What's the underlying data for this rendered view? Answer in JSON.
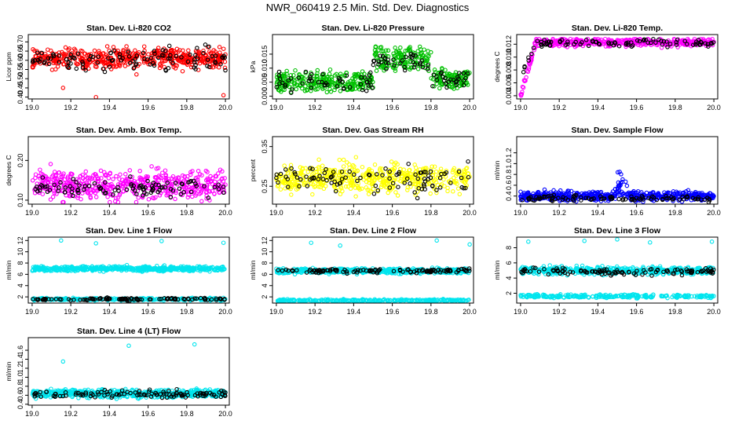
{
  "title": "NWR_060419  2.5 Min. Std. Dev. Diagnostics",
  "chart_data": [
    {
      "type": "scatter",
      "title": "Stan. Dev. Li-820 CO2",
      "ylabel": "Licor ppm",
      "xlim": [
        18.98,
        20.02
      ],
      "ylim": [
        0.39,
        0.74
      ],
      "xticks": [
        "19.0",
        "19.2",
        "19.4",
        "19.6",
        "19.8",
        "20.0"
      ],
      "yticks": [
        "0.40",
        "0.45",
        "0.50",
        "0.55",
        "0.60",
        "0.65",
        "0.70"
      ],
      "series": [
        {
          "color": "#ff0000",
          "n": 520,
          "distribution": {
            "center": 0.61,
            "spread": 0.04,
            "min": 0.44,
            "max": 0.73
          }
        },
        {
          "color": "#000000",
          "n": 110,
          "distribution": {
            "center": 0.61,
            "spread": 0.04,
            "min": 0.48,
            "max": 0.72
          }
        }
      ],
      "outliers": [
        {
          "x": 19.33,
          "y": 0.4,
          "color": "#ff0000"
        },
        {
          "x": 19.99,
          "y": 0.41,
          "color": "#ff0000"
        },
        {
          "x": 19.16,
          "y": 0.45,
          "color": "#ff0000"
        }
      ]
    },
    {
      "type": "scatter",
      "title": "Stan. Dev. Li-820 Pressure",
      "ylabel": "kPa",
      "xlim": [
        18.98,
        20.02
      ],
      "ylim": [
        -0.001,
        0.022
      ],
      "xticks": [
        "19.0",
        "19.2",
        "19.4",
        "19.6",
        "19.8",
        "20.0"
      ],
      "yticks": [
        "0.000",
        "0.005",
        "0.010",
        "0.015"
      ],
      "series": [
        {
          "color": "#00c000",
          "n": 520,
          "segments": [
            [
              18.98,
              19.5,
              0.004,
              0.006
            ],
            [
              19.5,
              19.8,
              0.012,
              0.007
            ],
            [
              19.8,
              20.02,
              0.005,
              0.006
            ]
          ],
          "spread": 0.002,
          "min": 0.0,
          "max": 0.021
        },
        {
          "color": "#000000",
          "n": 110,
          "segments": [
            [
              18.98,
              19.5,
              0.004,
              0.006
            ],
            [
              19.5,
              19.8,
              0.011,
              0.006
            ],
            [
              19.8,
              20.02,
              0.005,
              0.005
            ]
          ],
          "spread": 0.002,
          "min": 0.0,
          "max": 0.018
        }
      ]
    },
    {
      "type": "scatter",
      "title": "Stan. Dev. Li-820 Temp.",
      "ylabel": "degrees C",
      "xlim": [
        18.98,
        20.02
      ],
      "ylim": [
        0.0035,
        0.0135
      ],
      "xticks": [
        "19.0",
        "19.2",
        "19.4",
        "19.6",
        "19.8",
        "20.0"
      ],
      "yticks": [
        "0.004",
        "0.006",
        "0.008",
        "0.010",
        "0.012"
      ],
      "series": [
        {
          "color": "#ff00ff",
          "n": 480,
          "distribution": {
            "center": 0.0123,
            "spread": 0.0004,
            "min": 0.004,
            "max": 0.0128
          },
          "rampStart": 19.0,
          "rampEnd": 19.08,
          "rampFrom": 0.004
        },
        {
          "color": "#000000",
          "n": 90,
          "distribution": {
            "center": 0.0122,
            "spread": 0.0004,
            "min": 0.006,
            "max": 0.0128
          },
          "rampStart": 19.0,
          "rampEnd": 19.08,
          "rampFrom": 0.007
        }
      ]
    },
    {
      "type": "scatter",
      "title": "Stan. Dev. Amb. Box Temp.",
      "ylabel": "degrees C",
      "xlim": [
        18.98,
        20.02
      ],
      "ylim": [
        0.09,
        0.26
      ],
      "xticks": [
        "19.0",
        "19.2",
        "19.4",
        "19.6",
        "19.8",
        "20.0"
      ],
      "yticks": [
        "0.10",
        "0.20"
      ],
      "series": [
        {
          "color": "#ff00ff",
          "n": 520,
          "distribution": {
            "center": 0.14,
            "spread": 0.025,
            "min": 0.095,
            "max": 0.25
          }
        },
        {
          "color": "#000000",
          "n": 100,
          "distribution": {
            "center": 0.13,
            "spread": 0.015,
            "min": 0.1,
            "max": 0.18
          }
        }
      ]
    },
    {
      "type": "scatter",
      "title": "Stan. Dev. Gas Stream RH",
      "ylabel": "percent",
      "xlim": [
        18.98,
        20.02
      ],
      "ylim": [
        0.205,
        0.375
      ],
      "xticks": [
        "19.0",
        "19.2",
        "19.4",
        "19.6",
        "19.8",
        "20.0"
      ],
      "yticks": [
        "0.25",
        "0.35"
      ],
      "series": [
        {
          "color": "#ffff00",
          "n": 520,
          "distribution": {
            "center": 0.27,
            "spread": 0.025,
            "min": 0.21,
            "max": 0.37
          }
        },
        {
          "color": "#000000",
          "n": 100,
          "distribution": {
            "center": 0.27,
            "spread": 0.025,
            "min": 0.22,
            "max": 0.33
          }
        }
      ]
    },
    {
      "type": "scatter",
      "title": "Stan. Dev. Sample Flow",
      "ylabel": "ml/min",
      "xlim": [
        18.98,
        20.02
      ],
      "ylim": [
        0.25,
        1.5
      ],
      "xticks": [
        "19.0",
        "19.2",
        "19.4",
        "19.6",
        "19.8",
        "20.0"
      ],
      "yticks": [
        "0.4",
        "0.6",
        "0.8",
        "1.0",
        "1.2"
      ],
      "series": [
        {
          "color": "#0000ff",
          "n": 560,
          "distribution": {
            "center": 0.4,
            "spread": 0.06,
            "min": 0.28,
            "max": 0.7
          },
          "peak": {
            "x": 19.52,
            "width": 0.04,
            "height": 0.55
          }
        },
        {
          "color": "#000000",
          "n": 100,
          "distribution": {
            "center": 0.36,
            "spread": 0.04,
            "min": 0.28,
            "max": 0.5
          }
        }
      ]
    },
    {
      "type": "scatter",
      "title": "Stan. Dev. Line 1 Flow",
      "ylabel": "ml/min",
      "xlim": [
        18.98,
        20.02
      ],
      "ylim": [
        0.9,
        12.6
      ],
      "xticks": [
        "19.0",
        "19.2",
        "19.4",
        "19.6",
        "19.8",
        "20.0"
      ],
      "yticks": [
        "2",
        "4",
        "6",
        "8",
        "10",
        "12"
      ],
      "series": [
        {
          "color": "#00e5ee",
          "n": 520,
          "distribution": {
            "center": 7.0,
            "spread": 0.3,
            "min": 5.2,
            "max": 8.0
          }
        },
        {
          "color": "#00e5ee",
          "n": 260,
          "distribution": {
            "center": 1.6,
            "spread": 0.15,
            "min": 1.2,
            "max": 2.1
          }
        },
        {
          "color": "#000000",
          "n": 110,
          "distribution": {
            "center": 1.6,
            "spread": 0.15,
            "min": 1.2,
            "max": 2.0
          }
        }
      ],
      "outliers": [
        {
          "x": 19.15,
          "y": 12.0,
          "color": "#00e5ee"
        },
        {
          "x": 19.33,
          "y": 11.5,
          "color": "#00e5ee"
        },
        {
          "x": 19.67,
          "y": 11.9,
          "color": "#00e5ee"
        },
        {
          "x": 19.99,
          "y": 11.6,
          "color": "#00e5ee"
        }
      ]
    },
    {
      "type": "scatter",
      "title": "Stan. Dev. Line 2 Flow",
      "ylabel": "ml/min",
      "xlim": [
        18.98,
        20.02
      ],
      "ylim": [
        0.9,
        12.6
      ],
      "xticks": [
        "19.0",
        "19.2",
        "19.4",
        "19.6",
        "19.8",
        "20.0"
      ],
      "yticks": [
        "2",
        "4",
        "6",
        "8",
        "10",
        "12"
      ],
      "series": [
        {
          "color": "#00e5ee",
          "n": 520,
          "distribution": {
            "center": 6.6,
            "spread": 0.3,
            "min": 5.2,
            "max": 7.6
          }
        },
        {
          "color": "#00e5ee",
          "n": 260,
          "distribution": {
            "center": 1.4,
            "spread": 0.12,
            "min": 1.0,
            "max": 1.9
          }
        },
        {
          "color": "#000000",
          "n": 110,
          "distribution": {
            "center": 6.6,
            "spread": 0.3,
            "min": 5.6,
            "max": 7.3
          }
        }
      ],
      "outliers": [
        {
          "x": 19.18,
          "y": 11.6,
          "color": "#00e5ee"
        },
        {
          "x": 19.33,
          "y": 11.1,
          "color": "#00e5ee"
        },
        {
          "x": 19.83,
          "y": 12.0,
          "color": "#00e5ee"
        },
        {
          "x": 20.0,
          "y": 11.3,
          "color": "#00e5ee"
        }
      ]
    },
    {
      "type": "scatter",
      "title": "Stan. Dev. Line 3 Flow",
      "ylabel": "ml/min",
      "xlim": [
        18.98,
        20.02
      ],
      "ylim": [
        0.7,
        9.4
      ],
      "xticks": [
        "19.0",
        "19.2",
        "19.4",
        "19.6",
        "19.8",
        "20.0"
      ],
      "yticks": [
        "2",
        "4",
        "6",
        "8"
      ],
      "series": [
        {
          "color": "#00e5ee",
          "n": 520,
          "distribution": {
            "center": 5.0,
            "spread": 0.35,
            "min": 3.8,
            "max": 6.2
          }
        },
        {
          "color": "#00e5ee",
          "n": 260,
          "distribution": {
            "center": 1.6,
            "spread": 0.15,
            "min": 1.1,
            "max": 2.0
          }
        },
        {
          "color": "#000000",
          "n": 110,
          "distribution": {
            "center": 4.9,
            "spread": 0.3,
            "min": 4.0,
            "max": 5.8
          }
        }
      ],
      "outliers": [
        {
          "x": 19.04,
          "y": 8.8,
          "color": "#00e5ee"
        },
        {
          "x": 19.33,
          "y": 8.9,
          "color": "#00e5ee"
        },
        {
          "x": 19.5,
          "y": 9.1,
          "color": "#00e5ee"
        },
        {
          "x": 19.67,
          "y": 8.7,
          "color": "#00e5ee"
        },
        {
          "x": 19.99,
          "y": 8.8,
          "color": "#00e5ee"
        }
      ]
    },
    {
      "type": "scatter",
      "title": "Stan. Dev. Line 4 (LT) Flow",
      "ylabel": "ml/min",
      "xlim": [
        18.98,
        20.02
      ],
      "ylim": [
        0.38,
        1.88
      ],
      "xticks": [
        "19.0",
        "19.2",
        "19.4",
        "19.6",
        "19.8",
        "20.0"
      ],
      "yticks": [
        "0.4",
        "0.6",
        "0.8",
        "1.0",
        "1.2",
        "1.4",
        "1.6"
      ],
      "series": [
        {
          "color": "#00e5ee",
          "n": 620,
          "distribution": {
            "center": 0.64,
            "spread": 0.06,
            "min": 0.44,
            "max": 0.85
          }
        },
        {
          "color": "#000000",
          "n": 110,
          "distribution": {
            "center": 0.63,
            "spread": 0.06,
            "min": 0.45,
            "max": 0.78
          }
        }
      ],
      "outliers": [
        {
          "x": 19.16,
          "y": 1.35,
          "color": "#00e5ee"
        },
        {
          "x": 19.5,
          "y": 1.7,
          "color": "#00e5ee"
        },
        {
          "x": 19.84,
          "y": 1.73,
          "color": "#00e5ee"
        }
      ]
    }
  ]
}
